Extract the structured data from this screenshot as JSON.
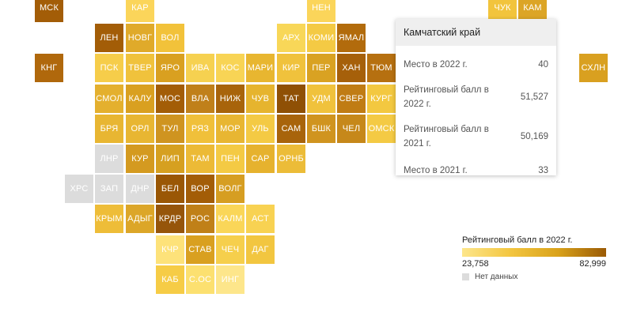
{
  "map": {
    "no_data_color": "#dcdcdc",
    "legend": {
      "title": "Рейтинговый балл в 2022 г.",
      "min": "23,758",
      "max": "82,999",
      "no_data_label": "Нет данных"
    },
    "tooltip": {
      "title": "Камчатский край",
      "rows": [
        {
          "label": "Место в 2022 г.",
          "value": "40"
        },
        {
          "label": "Рейтинговый балл в 2022 г.",
          "value": "51,527"
        },
        {
          "label": "Рейтинговый балл в 2021 г.",
          "value": "50,169"
        },
        {
          "label": "Место в 2021 г.",
          "value": "33"
        }
      ]
    },
    "regions": [
      {
        "code": "МСК",
        "row": 0,
        "col": 0,
        "color": "#a35d07"
      },
      {
        "code": "КАР",
        "row": 0,
        "col": 3,
        "color": "#fbd55a"
      },
      {
        "code": "НЕН",
        "row": 0,
        "col": 9,
        "color": "#fbd55a"
      },
      {
        "code": "ЧУК",
        "row": 0,
        "col": 15,
        "color": "#f2c43c"
      },
      {
        "code": "КАМ",
        "row": 0,
        "col": 16,
        "color": "#dca526"
      },
      {
        "code": "ЛЕН",
        "row": 1,
        "col": 2,
        "color": "#a35d07"
      },
      {
        "code": "НОВГ",
        "row": 1,
        "col": 3,
        "color": "#e0aa2a"
      },
      {
        "code": "ВОЛ",
        "row": 1,
        "col": 4,
        "color": "#f2c23a"
      },
      {
        "code": "АРХ",
        "row": 1,
        "col": 8,
        "color": "#f8d758"
      },
      {
        "code": "КОМИ",
        "row": 1,
        "col": 9,
        "color": "#f4ca44"
      },
      {
        "code": "ЯМАЛ",
        "row": 1,
        "col": 10,
        "color": "#b26b0c"
      },
      {
        "code": "КНГ",
        "row": 2,
        "col": 0,
        "color": "#b0680c"
      },
      {
        "code": "ПСК",
        "row": 2,
        "col": 2,
        "color": "#f6cd4a"
      },
      {
        "code": "ТВЕР",
        "row": 2,
        "col": 3,
        "color": "#f0c23c"
      },
      {
        "code": "ЯРО",
        "row": 2,
        "col": 4,
        "color": "#d9a020"
      },
      {
        "code": "ИВА",
        "row": 2,
        "col": 5,
        "color": "#f6d150"
      },
      {
        "code": "КОС",
        "row": 2,
        "col": 6,
        "color": "#f8d455"
      },
      {
        "code": "МАРИ",
        "row": 2,
        "col": 7,
        "color": "#e8b630"
      },
      {
        "code": "КИР",
        "row": 2,
        "col": 8,
        "color": "#f0c23c"
      },
      {
        "code": "ПЕР",
        "row": 2,
        "col": 9,
        "color": "#d9a222"
      },
      {
        "code": "ХАН",
        "row": 2,
        "col": 10,
        "color": "#a6600a"
      },
      {
        "code": "ТЮМ",
        "row": 2,
        "col": 11,
        "color": "#b67010"
      },
      {
        "code": "СХЛН",
        "row": 2,
        "col": 18,
        "color": "#d9a020"
      },
      {
        "code": "СМОЛ",
        "row": 3,
        "col": 2,
        "color": "#e4b02e"
      },
      {
        "code": "КАЛУ",
        "row": 3,
        "col": 3,
        "color": "#d9a020"
      },
      {
        "code": "МОС",
        "row": 3,
        "col": 4,
        "color": "#a35d07"
      },
      {
        "code": "ВЛА",
        "row": 3,
        "col": 5,
        "color": "#c0801a"
      },
      {
        "code": "НИЖ",
        "row": 3,
        "col": 6,
        "color": "#a8640b"
      },
      {
        "code": "ЧУВ",
        "row": 3,
        "col": 7,
        "color": "#e6b42e"
      },
      {
        "code": "ТАТ",
        "row": 3,
        "col": 8,
        "color": "#8f5005"
      },
      {
        "code": "УДМ",
        "row": 3,
        "col": 9,
        "color": "#f0c23c"
      },
      {
        "code": "СВЕР",
        "row": 3,
        "col": 10,
        "color": "#c07c14"
      },
      {
        "code": "КУРГ",
        "row": 3,
        "col": 11,
        "color": "#f3c840"
      },
      {
        "code": "БРЯ",
        "row": 4,
        "col": 2,
        "color": "#e8b632"
      },
      {
        "code": "ОРЛ",
        "row": 4,
        "col": 3,
        "color": "#e8b632"
      },
      {
        "code": "ТУЛ",
        "row": 4,
        "col": 4,
        "color": "#cf9420"
      },
      {
        "code": "РЯЗ",
        "row": 4,
        "col": 5,
        "color": "#f0c03a"
      },
      {
        "code": "МОР",
        "row": 4,
        "col": 6,
        "color": "#e8b632"
      },
      {
        "code": "УЛЬ",
        "row": 4,
        "col": 7,
        "color": "#f4ca44"
      },
      {
        "code": "САМ",
        "row": 4,
        "col": 8,
        "color": "#a8640b"
      },
      {
        "code": "БШК",
        "row": 4,
        "col": 9,
        "color": "#d0941f"
      },
      {
        "code": "ЧЕЛ",
        "row": 4,
        "col": 10,
        "color": "#c6881a"
      },
      {
        "code": "ОМСК",
        "row": 4,
        "col": 11,
        "color": "#f4ca44"
      },
      {
        "code": "ЛНР",
        "row": 5,
        "col": 2,
        "color": "#dcdcdc"
      },
      {
        "code": "КУР",
        "row": 5,
        "col": 3,
        "color": "#d49a20"
      },
      {
        "code": "ЛИП",
        "row": 5,
        "col": 4,
        "color": "#d6a020"
      },
      {
        "code": "ТАМ",
        "row": 5,
        "col": 5,
        "color": "#ecba36"
      },
      {
        "code": "ПЕН",
        "row": 5,
        "col": 6,
        "color": "#f4ca44"
      },
      {
        "code": "САР",
        "row": 5,
        "col": 7,
        "color": "#e6b22e"
      },
      {
        "code": "ОРНБ",
        "row": 5,
        "col": 8,
        "color": "#ecbc38"
      },
      {
        "code": "ХРС",
        "row": 6,
        "col": 1,
        "color": "#dcdcdc"
      },
      {
        "code": "ЗАП",
        "row": 6,
        "col": 2,
        "color": "#dcdcdc"
      },
      {
        "code": "ДНР",
        "row": 6,
        "col": 3,
        "color": "#dcdcdc"
      },
      {
        "code": "БЕЛ",
        "row": 6,
        "col": 4,
        "color": "#9a5705"
      },
      {
        "code": "ВОР",
        "row": 6,
        "col": 5,
        "color": "#a35d07"
      },
      {
        "code": "ВОЛГ",
        "row": 6,
        "col": 6,
        "color": "#d69e22"
      },
      {
        "code": "КРЫМ",
        "row": 7,
        "col": 2,
        "color": "#eebd38"
      },
      {
        "code": "АДЫГ",
        "row": 7,
        "col": 3,
        "color": "#dca628"
      },
      {
        "code": "КРДР",
        "row": 7,
        "col": 4,
        "color": "#96550a"
      },
      {
        "code": "РОС",
        "row": 7,
        "col": 5,
        "color": "#c08018"
      },
      {
        "code": "КАЛМ",
        "row": 7,
        "col": 6,
        "color": "#fad658"
      },
      {
        "code": "АСТ",
        "row": 7,
        "col": 7,
        "color": "#f8d252"
      },
      {
        "code": "КЧР",
        "row": 8,
        "col": 4,
        "color": "#fde27a"
      },
      {
        "code": "СТАВ",
        "row": 8,
        "col": 5,
        "color": "#d9a020"
      },
      {
        "code": "ЧЕЧ",
        "row": 8,
        "col": 6,
        "color": "#f6cf4c"
      },
      {
        "code": "ДАГ",
        "row": 8,
        "col": 7,
        "color": "#f2c640"
      },
      {
        "code": "КАБ",
        "row": 9,
        "col": 4,
        "color": "#f6cc46"
      },
      {
        "code": "С.ОС",
        "row": 9,
        "col": 5,
        "color": "#fce070"
      },
      {
        "code": "ИНГ",
        "row": 9,
        "col": 6,
        "color": "#fde68b"
      }
    ]
  }
}
